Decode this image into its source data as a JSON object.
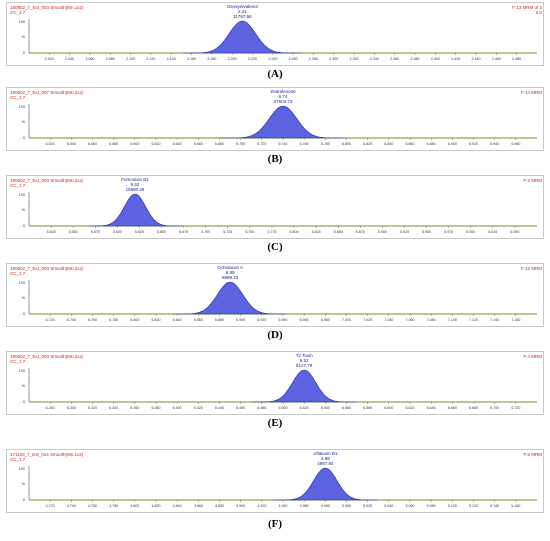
{
  "colors": {
    "peak_fill": "#5b63e0",
    "peak_stroke": "#2a2a9c",
    "baseline": "#6a9a2a",
    "header_text": "#cc2222",
    "peak_label": "#1a1a8c"
  },
  "chart_data": [
    {
      "type": "area",
      "caption": "(A)",
      "file_label": "180502_7_Ext_003 Smooth(Mn,1x2)",
      "file_label_sub": "CC_1.7",
      "right_label": "F:13 MRM of 2",
      "right_label_sub": "2.0",
      "peak_name": "Deoxynivalenol",
      "peak_rt": "2.21",
      "peak_area": "11797.66",
      "y_ticks": [
        "%",
        "0"
      ],
      "y_top_label": "100",
      "x_ticks": [
        "2.020",
        "2.040",
        "2.060",
        "2.080",
        "2.100",
        "2.120",
        "2.140",
        "2.160",
        "2.180",
        "2.200",
        "2.220",
        "2.240",
        "2.260",
        "2.280",
        "2.300",
        "2.320",
        "2.340",
        "2.360",
        "2.380",
        "2.400",
        "2.420",
        "2.440",
        "2.460",
        "2.480"
      ],
      "xlim": [
        2.0,
        2.5
      ],
      "peak": {
        "center": 2.21,
        "sigma": 0.013,
        "height": 100
      }
    },
    {
      "type": "area",
      "caption": "(B)",
      "file_label": "180502_7_Ext_007 Smooth(Mn,1x2)",
      "file_label_sub": "CC_1.7",
      "right_label": "F:14 MRM",
      "right_label_sub": "",
      "peak_name": "Zearalenone",
      "peak_rt": "6.74",
      "peak_area": "47503.73",
      "y_ticks": [
        "%",
        "0"
      ],
      "y_top_label": "100",
      "x_ticks": [
        "6.520",
        "6.540",
        "6.560",
        "6.580",
        "6.600",
        "6.620",
        "6.640",
        "6.660",
        "6.680",
        "6.700",
        "6.720",
        "6.740",
        "6.760",
        "6.780",
        "6.800",
        "6.820",
        "6.840",
        "6.860",
        "6.880",
        "6.900",
        "6.920",
        "6.940",
        "6.960"
      ],
      "xlim": [
        6.5,
        6.98
      ],
      "peak": {
        "center": 6.74,
        "sigma": 0.013,
        "height": 100
      }
    },
    {
      "type": "area",
      "caption": "(C)",
      "file_label": "180502_7_Ext_003 Smooth(Mn,1x2)",
      "file_label_sub": "CC_1.7",
      "right_label": "F:2 MRM",
      "right_label_sub": "",
      "peak_name": "Fumonisin B1",
      "peak_rt": "5.62",
      "peak_area": "15590.28",
      "y_ticks": [
        "%",
        "0"
      ],
      "y_top_label": "100",
      "x_ticks": [
        "5.525",
        "5.550",
        "5.575",
        "5.600",
        "5.625",
        "5.650",
        "5.675",
        "5.700",
        "5.725",
        "5.750",
        "5.775",
        "5.800",
        "5.825",
        "5.850",
        "5.875",
        "5.900",
        "5.925",
        "5.950",
        "5.975",
        "6.000",
        "6.025",
        "6.050"
      ],
      "xlim": [
        5.5,
        6.075
      ],
      "peak": {
        "center": 5.62,
        "sigma": 0.012,
        "height": 100
      }
    },
    {
      "type": "area",
      "caption": "(D)",
      "file_label": "180502_7_Ext_003 Smooth(Mn,1x2)",
      "file_label_sub": "CC_1.7",
      "right_label": "F:12 MRM",
      "right_label_sub": "",
      "peak_name": "Ochratoxin A",
      "peak_rt": "6.89",
      "peak_area": "6899.33",
      "y_ticks": [
        "%",
        "0"
      ],
      "y_top_label": "100",
      "x_ticks": [
        "6.720",
        "6.740",
        "6.760",
        "6.780",
        "6.800",
        "6.820",
        "6.840",
        "6.860",
        "6.880",
        "6.900",
        "6.920",
        "6.940",
        "6.960",
        "6.980",
        "7.000",
        "7.020",
        "7.040",
        "7.060",
        "7.080",
        "7.100",
        "7.120",
        "7.140",
        "7.160"
      ],
      "xlim": [
        6.7,
        7.18
      ],
      "peak": {
        "center": 6.89,
        "sigma": 0.012,
        "height": 100
      }
    },
    {
      "type": "area",
      "caption": "(E)",
      "file_label": "180502_7_Ext_003 Smooth(Mn,1x2)",
      "file_label_sub": "CC_1.7",
      "right_label": "F:4 MRM",
      "right_label_sub": "",
      "peak_name": "T2 Toxin",
      "peak_rt": "6.52",
      "peak_area": "5127.78",
      "y_ticks": [
        "%",
        "0"
      ],
      "y_top_label": "100",
      "x_ticks": [
        "6.280",
        "6.300",
        "6.320",
        "6.340",
        "6.360",
        "6.380",
        "6.400",
        "6.420",
        "6.440",
        "6.460",
        "6.480",
        "6.500",
        "6.520",
        "6.540",
        "6.560",
        "6.580",
        "6.600",
        "6.620",
        "6.640",
        "6.660",
        "6.680",
        "6.700",
        "6.720"
      ],
      "xlim": [
        6.26,
        6.74
      ],
      "peak": {
        "center": 6.52,
        "sigma": 0.011,
        "height": 100
      }
    },
    {
      "type": "area",
      "caption": "(F)",
      "file_label": "171103_7_Ext_014 Smooth(Mn,1x2)",
      "file_label_sub": "CC_1.7",
      "right_label": "F:6 MRM",
      "right_label_sub": "",
      "peak_name": "Aflatoxin B1",
      "peak_rt": "4.98",
      "peak_area": "4987.84",
      "y_ticks": [
        "%",
        "0"
      ],
      "y_top_label": "100",
      "x_ticks": [
        "4.720",
        "4.740",
        "4.760",
        "4.780",
        "4.800",
        "4.820",
        "4.840",
        "4.860",
        "4.880",
        "4.900",
        "4.920",
        "4.940",
        "4.960",
        "4.980",
        "5.000",
        "5.020",
        "5.040",
        "5.060",
        "5.080",
        "5.100",
        "5.120",
        "5.140",
        "5.160"
      ],
      "xlim": [
        4.7,
        5.18
      ],
      "peak": {
        "center": 4.98,
        "sigma": 0.011,
        "height": 100
      }
    }
  ]
}
